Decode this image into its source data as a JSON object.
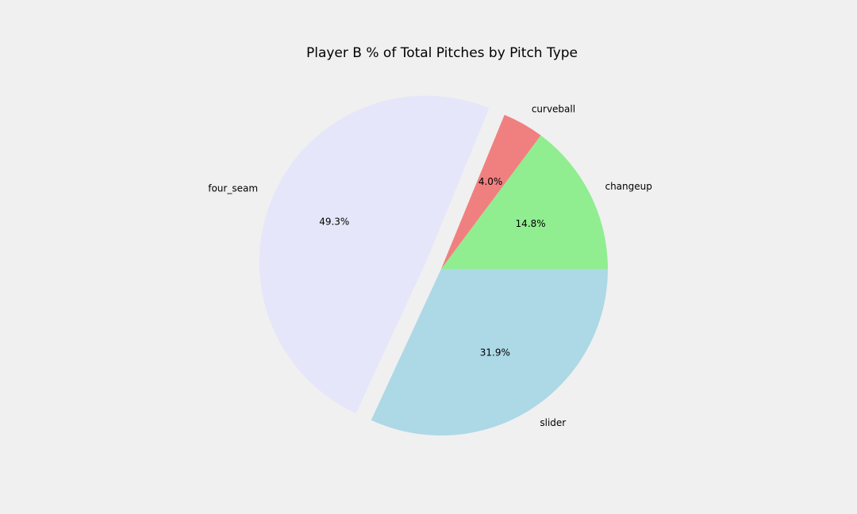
{
  "chart_data": {
    "type": "pie",
    "title": "Player B % of Total Pitches by Pitch Type",
    "start_angle_deg": 0,
    "direction": "counterclockwise",
    "slices": [
      {
        "label": "changeup",
        "value": 14.8,
        "pct_label": "14.8%",
        "color": "#90ee90",
        "exploded": false
      },
      {
        "label": "curveball",
        "value": 4.0,
        "pct_label": "4.0%",
        "color": "#f08080",
        "exploded": false
      },
      {
        "label": "four_seam",
        "value": 49.3,
        "pct_label": "49.3%",
        "color": "#e6e6fa",
        "exploded": true
      },
      {
        "label": "slider",
        "value": 31.9,
        "pct_label": "31.9%",
        "color": "#add8e6",
        "exploded": false
      }
    ]
  }
}
